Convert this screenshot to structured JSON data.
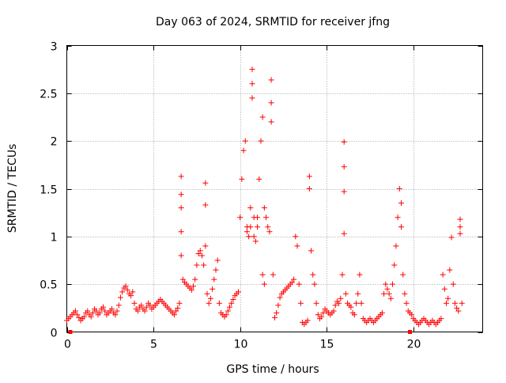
{
  "chart_data": {
    "type": "scatter",
    "title": "Day 063 of 2024, SRMTID for receiver jfng",
    "xlabel": "GPS time / hours",
    "ylabel": "SRMTID / TECUs",
    "xlim": [
      0,
      24
    ],
    "ylim": [
      0,
      3
    ],
    "x_ticks": [
      0,
      5,
      10,
      15,
      20
    ],
    "y_ticks": [
      0,
      0.5,
      1,
      1.5,
      2,
      2.5,
      3
    ],
    "x_tick_labels": [
      "0",
      "5",
      "10",
      "15",
      "20"
    ],
    "y_tick_labels": [
      "0",
      "0.5",
      "1",
      "1.5",
      "2",
      "2.5",
      "3"
    ],
    "grid": true,
    "legend": "none",
    "marker": "+",
    "color": "#ff0000",
    "gap_markers_x": [
      0.2,
      19.8
    ],
    "series": [
      {
        "name": "SRMTID",
        "x": [
          0.0,
          0.1,
          0.2,
          0.3,
          0.4,
          0.5,
          0.6,
          0.7,
          0.8,
          0.9,
          1.0,
          1.1,
          1.2,
          1.3,
          1.4,
          1.5,
          1.6,
          1.7,
          1.8,
          1.9,
          2.0,
          2.1,
          2.2,
          2.3,
          2.4,
          2.5,
          2.6,
          2.7,
          2.8,
          2.9,
          3.0,
          3.1,
          3.2,
          3.3,
          3.4,
          3.5,
          3.6,
          3.7,
          3.8,
          3.9,
          4.0,
          4.1,
          4.2,
          4.3,
          4.4,
          4.5,
          4.6,
          4.7,
          4.8,
          4.9,
          5.0,
          5.1,
          5.2,
          5.3,
          5.4,
          5.5,
          5.6,
          5.7,
          5.8,
          5.9,
          6.0,
          6.1,
          6.2,
          6.3,
          6.4,
          6.5,
          6.6,
          6.6,
          6.6,
          6.6,
          6.6,
          6.7,
          6.8,
          6.9,
          7.0,
          7.1,
          7.2,
          7.3,
          7.4,
          7.5,
          7.6,
          7.7,
          7.8,
          7.9,
          8.0,
          8.0,
          8.0,
          8.1,
          8.2,
          8.3,
          8.4,
          8.5,
          8.6,
          8.7,
          8.8,
          8.9,
          9.0,
          9.1,
          9.2,
          9.3,
          9.4,
          9.5,
          9.6,
          9.7,
          9.8,
          9.9,
          10.0,
          10.1,
          10.2,
          10.3,
          10.4,
          10.4,
          10.5,
          10.6,
          10.6,
          10.7,
          10.7,
          10.7,
          10.8,
          10.8,
          10.9,
          11.0,
          11.0,
          11.1,
          11.2,
          11.3,
          11.3,
          11.4,
          11.4,
          11.5,
          11.6,
          11.7,
          11.8,
          11.8,
          11.8,
          11.9,
          12.0,
          12.1,
          12.2,
          12.3,
          12.4,
          12.5,
          12.6,
          12.7,
          12.8,
          12.9,
          13.0,
          13.1,
          13.2,
          13.3,
          13.4,
          13.5,
          13.6,
          13.7,
          13.8,
          13.9,
          14.0,
          14.0,
          14.1,
          14.2,
          14.3,
          14.4,
          14.5,
          14.6,
          14.7,
          14.8,
          14.9,
          15.0,
          15.1,
          15.2,
          15.3,
          15.4,
          15.5,
          15.6,
          15.7,
          15.8,
          15.9,
          16.0,
          16.0,
          16.0,
          16.0,
          16.1,
          16.2,
          16.3,
          16.4,
          16.5,
          16.6,
          16.7,
          16.8,
          16.9,
          17.0,
          17.1,
          17.2,
          17.3,
          17.4,
          17.5,
          17.6,
          17.7,
          17.8,
          17.9,
          18.0,
          18.1,
          18.2,
          18.3,
          18.4,
          18.5,
          18.6,
          18.7,
          18.8,
          18.9,
          19.0,
          19.1,
          19.2,
          19.3,
          19.3,
          19.4,
          19.5,
          19.6,
          19.7,
          19.8,
          19.9,
          20.0,
          20.1,
          20.2,
          20.3,
          20.4,
          20.5,
          20.6,
          20.7,
          20.8,
          20.9,
          21.0,
          21.1,
          21.2,
          21.3,
          21.4,
          21.5,
          21.6,
          21.7,
          21.8,
          21.9,
          22.0,
          22.1,
          22.2,
          22.3,
          22.4,
          22.5,
          22.6,
          22.7,
          22.7,
          22.7,
          22.8
        ],
        "y": [
          0.12,
          0.14,
          0.16,
          0.18,
          0.2,
          0.22,
          0.18,
          0.15,
          0.12,
          0.14,
          0.16,
          0.2,
          0.22,
          0.18,
          0.16,
          0.2,
          0.24,
          0.22,
          0.18,
          0.2,
          0.24,
          0.26,
          0.22,
          0.18,
          0.2,
          0.22,
          0.24,
          0.2,
          0.18,
          0.22,
          0.28,
          0.36,
          0.42,
          0.46,
          0.48,
          0.44,
          0.4,
          0.38,
          0.42,
          0.3,
          0.24,
          0.22,
          0.26,
          0.28,
          0.24,
          0.22,
          0.26,
          0.3,
          0.28,
          0.24,
          0.26,
          0.28,
          0.3,
          0.32,
          0.34,
          0.32,
          0.3,
          0.28,
          0.26,
          0.24,
          0.22,
          0.2,
          0.18,
          0.22,
          0.25,
          0.3,
          1.63,
          1.44,
          1.3,
          1.05,
          0.8,
          0.55,
          0.52,
          0.5,
          0.48,
          0.46,
          0.44,
          0.48,
          0.55,
          0.7,
          0.82,
          0.85,
          0.8,
          0.7,
          1.56,
          1.33,
          0.9,
          0.4,
          0.3,
          0.35,
          0.45,
          0.55,
          0.65,
          0.75,
          0.3,
          0.2,
          0.18,
          0.16,
          0.18,
          0.22,
          0.26,
          0.3,
          0.34,
          0.38,
          0.4,
          0.42,
          1.2,
          1.6,
          1.9,
          2.0,
          1.1,
          1.05,
          1.0,
          1.1,
          1.3,
          2.75,
          2.6,
          2.45,
          1.2,
          1.0,
          0.95,
          1.1,
          1.2,
          1.6,
          2.0,
          2.25,
          0.6,
          0.5,
          1.3,
          1.2,
          1.1,
          1.05,
          2.64,
          2.4,
          2.2,
          0.6,
          0.15,
          0.2,
          0.28,
          0.36,
          0.4,
          0.42,
          0.44,
          0.46,
          0.48,
          0.5,
          0.52,
          0.55,
          1.0,
          0.9,
          0.5,
          0.3,
          0.1,
          0.08,
          0.1,
          0.12,
          1.63,
          1.5,
          0.85,
          0.6,
          0.5,
          0.3,
          0.18,
          0.14,
          0.16,
          0.2,
          0.24,
          0.22,
          0.2,
          0.18,
          0.2,
          0.22,
          0.28,
          0.32,
          0.3,
          0.35,
          0.6,
          1.99,
          1.73,
          1.47,
          1.03,
          0.4,
          0.3,
          0.28,
          0.26,
          0.2,
          0.18,
          0.3,
          0.4,
          0.6,
          0.3,
          0.14,
          0.12,
          0.1,
          0.12,
          0.14,
          0.12,
          0.1,
          0.12,
          0.14,
          0.16,
          0.18,
          0.2,
          0.4,
          0.5,
          0.45,
          0.4,
          0.35,
          0.5,
          0.7,
          0.9,
          1.2,
          1.5,
          1.35,
          1.1,
          0.6,
          0.4,
          0.3,
          0.22,
          0.2,
          0.18,
          0.14,
          0.12,
          0.1,
          0.08,
          0.1,
          0.12,
          0.14,
          0.12,
          0.1,
          0.08,
          0.1,
          0.12,
          0.1,
          0.08,
          0.1,
          0.12,
          0.14,
          0.6,
          0.45,
          0.3,
          0.35,
          0.65,
          0.99,
          0.5,
          0.3,
          0.25,
          0.22,
          1.18,
          1.1,
          1.03,
          0.3
        ]
      }
    ]
  }
}
